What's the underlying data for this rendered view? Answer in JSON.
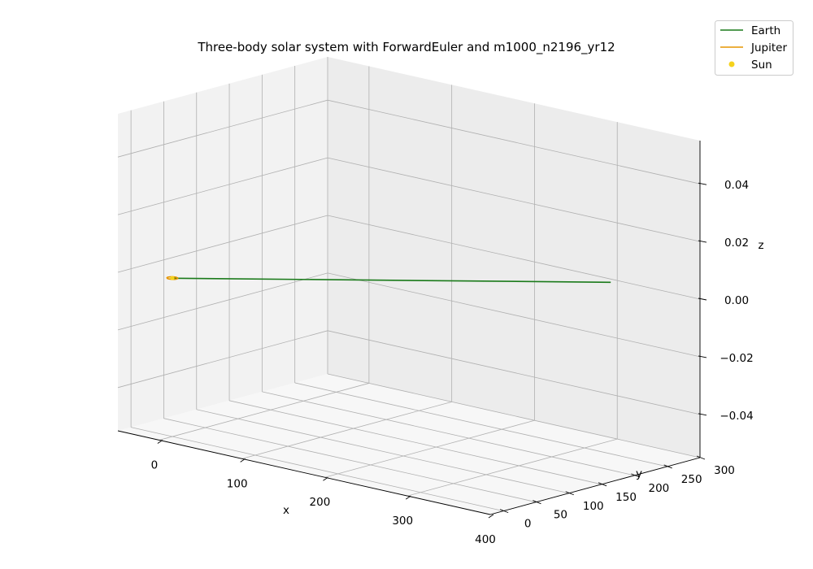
{
  "chart_data": {
    "type": "line3d",
    "title": "Three-body solar system with ForwardEuler and m1000_n2196_yr12",
    "xlabel": "x",
    "ylabel": "y",
    "zlabel": "z",
    "xlim": [
      -50,
      400
    ],
    "ylim": [
      -20,
      300
    ],
    "zlim": [
      -0.055,
      0.055
    ],
    "xticks": [
      0,
      100,
      200,
      300,
      400
    ],
    "yticks": [
      0,
      50,
      100,
      150,
      200,
      250,
      300
    ],
    "zticks": [
      -0.04,
      -0.02,
      0.0,
      0.02,
      0.04
    ],
    "zticklabels": [
      "−0.04",
      "−0.02",
      "0.00",
      "0.02",
      "0.04"
    ],
    "grid": true,
    "legend_position": "top-right",
    "series": [
      {
        "name": "Earth",
        "kind": "line",
        "color": "#1a7a1a",
        "points": [
          [
            1,
            0,
            0
          ],
          [
            300,
            290,
            0
          ]
        ]
      },
      {
        "name": "Jupiter",
        "kind": "line",
        "color": "#e69500",
        "points": [
          [
            5.2,
            0,
            0
          ],
          [
            4.5,
            2.6,
            0
          ],
          [
            2.6,
            4.5,
            0
          ],
          [
            0,
            5.2,
            0
          ],
          [
            -2.6,
            4.5,
            0
          ],
          [
            -4.5,
            2.6,
            0
          ],
          [
            -5.2,
            0,
            0
          ],
          [
            -4.5,
            -2.6,
            0
          ],
          [
            -2.6,
            -4.5,
            0
          ],
          [
            0,
            -5.2,
            0
          ],
          [
            2.6,
            -4.5,
            0
          ],
          [
            4.5,
            -2.6,
            0
          ],
          [
            5.2,
            0,
            0
          ]
        ]
      },
      {
        "name": "Sun",
        "kind": "scatter",
        "color": "#f5d21c",
        "points": [
          [
            0,
            0,
            0
          ]
        ]
      }
    ]
  }
}
